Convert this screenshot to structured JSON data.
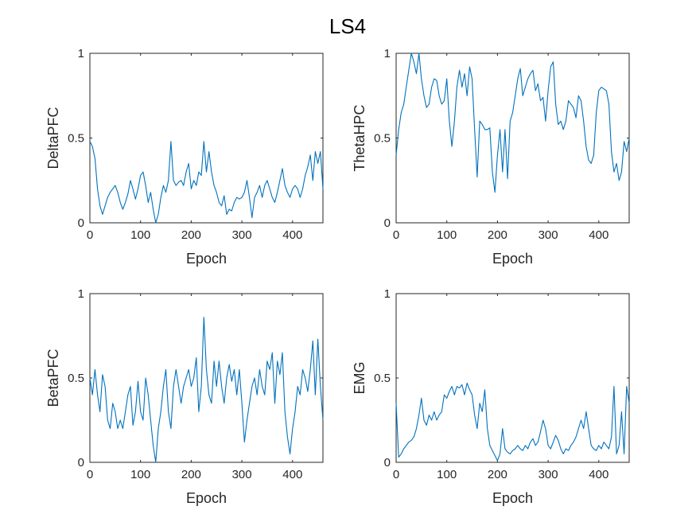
{
  "figure": {
    "title": "LS4"
  },
  "colors": {
    "line": "#0072BD",
    "axes": "#262626",
    "background": "#ffffff"
  },
  "chart_data": [
    {
      "type": "line",
      "title": "",
      "xlabel": "Epoch",
      "ylabel": "DeltaPFC",
      "xlim": [
        0,
        460
      ],
      "ylim": [
        0,
        1
      ],
      "xticks": [
        0,
        100,
        200,
        300,
        400
      ],
      "yticks": [
        0,
        0.5,
        1
      ],
      "grid": false,
      "series": [
        {
          "x": [
            0,
            5,
            10,
            15,
            20,
            25,
            30,
            35,
            40,
            45,
            50,
            55,
            60,
            65,
            70,
            75,
            80,
            85,
            90,
            95,
            100,
            105,
            110,
            115,
            120,
            125,
            130,
            135,
            140,
            145,
            150,
            155,
            160,
            165,
            170,
            175,
            180,
            185,
            190,
            195,
            200,
            205,
            210,
            215,
            220,
            225,
            230,
            235,
            240,
            245,
            250,
            255,
            260,
            265,
            270,
            275,
            280,
            285,
            290,
            295,
            300,
            305,
            310,
            315,
            320,
            325,
            330,
            335,
            340,
            345,
            350,
            355,
            360,
            365,
            370,
            375,
            380,
            385,
            390,
            395,
            400,
            405,
            410,
            415,
            420,
            425,
            430,
            435,
            440,
            445,
            450,
            455,
            460
          ],
          "y": [
            0.48,
            0.45,
            0.38,
            0.2,
            0.1,
            0.05,
            0.1,
            0.15,
            0.18,
            0.2,
            0.22,
            0.18,
            0.12,
            0.08,
            0.12,
            0.17,
            0.25,
            0.2,
            0.14,
            0.2,
            0.28,
            0.3,
            0.22,
            0.12,
            0.18,
            0.08,
            0.0,
            0.05,
            0.15,
            0.22,
            0.18,
            0.25,
            0.48,
            0.25,
            0.22,
            0.24,
            0.25,
            0.22,
            0.3,
            0.35,
            0.2,
            0.25,
            0.22,
            0.3,
            0.28,
            0.48,
            0.3,
            0.42,
            0.3,
            0.22,
            0.18,
            0.12,
            0.1,
            0.16,
            0.05,
            0.08,
            0.07,
            0.12,
            0.15,
            0.14,
            0.15,
            0.18,
            0.25,
            0.15,
            0.03,
            0.15,
            0.18,
            0.22,
            0.15,
            0.22,
            0.25,
            0.2,
            0.15,
            0.12,
            0.18,
            0.25,
            0.32,
            0.22,
            0.18,
            0.15,
            0.2,
            0.22,
            0.2,
            0.15,
            0.2,
            0.28,
            0.33,
            0.4,
            0.25,
            0.42,
            0.35,
            0.42,
            0.2
          ]
        }
      ]
    },
    {
      "type": "line",
      "title": "",
      "xlabel": "Epoch",
      "ylabel": "ThetaHPC",
      "xlim": [
        0,
        460
      ],
      "ylim": [
        0,
        1
      ],
      "xticks": [
        0,
        100,
        200,
        300,
        400
      ],
      "yticks": [
        0,
        0.5,
        1
      ],
      "grid": false,
      "series": [
        {
          "x": [
            0,
            5,
            10,
            15,
            20,
            25,
            30,
            35,
            40,
            45,
            50,
            55,
            60,
            65,
            70,
            75,
            80,
            85,
            90,
            95,
            100,
            105,
            110,
            115,
            120,
            125,
            130,
            135,
            140,
            145,
            150,
            155,
            160,
            165,
            170,
            175,
            180,
            185,
            190,
            195,
            200,
            205,
            210,
            215,
            220,
            225,
            230,
            235,
            240,
            245,
            250,
            255,
            260,
            265,
            270,
            275,
            280,
            285,
            290,
            295,
            300,
            305,
            310,
            315,
            320,
            325,
            330,
            335,
            340,
            345,
            350,
            355,
            360,
            365,
            370,
            375,
            380,
            385,
            390,
            395,
            400,
            405,
            410,
            415,
            420,
            425,
            430,
            435,
            440,
            445,
            450,
            455,
            460
          ],
          "y": [
            0.4,
            0.55,
            0.65,
            0.7,
            0.8,
            0.9,
            1.0,
            0.95,
            0.88,
            1.0,
            0.85,
            0.75,
            0.68,
            0.7,
            0.8,
            0.85,
            0.84,
            0.75,
            0.7,
            0.72,
            0.85,
            0.6,
            0.45,
            0.6,
            0.8,
            0.9,
            0.8,
            0.88,
            0.75,
            0.92,
            0.85,
            0.55,
            0.27,
            0.6,
            0.58,
            0.55,
            0.55,
            0.56,
            0.3,
            0.18,
            0.4,
            0.55,
            0.3,
            0.55,
            0.26,
            0.6,
            0.65,
            0.75,
            0.85,
            0.91,
            0.75,
            0.8,
            0.85,
            0.88,
            0.9,
            0.78,
            0.82,
            0.72,
            0.74,
            0.6,
            0.78,
            0.92,
            0.95,
            0.7,
            0.58,
            0.6,
            0.55,
            0.6,
            0.72,
            0.7,
            0.68,
            0.62,
            0.75,
            0.72,
            0.6,
            0.45,
            0.37,
            0.35,
            0.4,
            0.65,
            0.78,
            0.8,
            0.79,
            0.78,
            0.7,
            0.42,
            0.3,
            0.35,
            0.25,
            0.3,
            0.48,
            0.42,
            0.5
          ]
        }
      ]
    },
    {
      "type": "line",
      "title": "",
      "xlabel": "Epoch",
      "ylabel": "BetaPFC",
      "xlim": [
        0,
        460
      ],
      "ylim": [
        0,
        1
      ],
      "xticks": [
        0,
        100,
        200,
        300,
        400
      ],
      "yticks": [
        0,
        0.5,
        1
      ],
      "grid": false,
      "series": [
        {
          "x": [
            0,
            5,
            10,
            15,
            20,
            25,
            30,
            35,
            40,
            45,
            50,
            55,
            60,
            65,
            70,
            75,
            80,
            85,
            90,
            95,
            100,
            105,
            110,
            115,
            120,
            125,
            130,
            135,
            140,
            145,
            150,
            155,
            160,
            165,
            170,
            175,
            180,
            185,
            190,
            195,
            200,
            205,
            210,
            215,
            220,
            225,
            230,
            235,
            240,
            245,
            250,
            255,
            260,
            265,
            270,
            275,
            280,
            285,
            290,
            295,
            300,
            305,
            310,
            315,
            320,
            325,
            330,
            335,
            340,
            345,
            350,
            355,
            360,
            365,
            370,
            375,
            380,
            385,
            390,
            395,
            400,
            405,
            410,
            415,
            420,
            425,
            430,
            435,
            440,
            445,
            450,
            455,
            460
          ],
          "y": [
            0.5,
            0.4,
            0.55,
            0.4,
            0.3,
            0.52,
            0.45,
            0.25,
            0.2,
            0.35,
            0.3,
            0.2,
            0.25,
            0.2,
            0.3,
            0.4,
            0.45,
            0.22,
            0.3,
            0.48,
            0.3,
            0.25,
            0.5,
            0.4,
            0.25,
            0.1,
            0.0,
            0.2,
            0.3,
            0.45,
            0.55,
            0.3,
            0.2,
            0.45,
            0.55,
            0.45,
            0.35,
            0.45,
            0.5,
            0.55,
            0.45,
            0.5,
            0.62,
            0.3,
            0.45,
            0.86,
            0.55,
            0.4,
            0.35,
            0.6,
            0.45,
            0.6,
            0.45,
            0.35,
            0.5,
            0.58,
            0.48,
            0.55,
            0.4,
            0.55,
            0.35,
            0.12,
            0.25,
            0.35,
            0.45,
            0.5,
            0.4,
            0.55,
            0.45,
            0.4,
            0.6,
            0.55,
            0.65,
            0.35,
            0.6,
            0.52,
            0.65,
            0.3,
            0.15,
            0.05,
            0.2,
            0.3,
            0.45,
            0.4,
            0.55,
            0.5,
            0.42,
            0.55,
            0.72,
            0.4,
            0.73,
            0.45,
            0.25
          ]
        }
      ]
    },
    {
      "type": "line",
      "title": "",
      "xlabel": "Epoch",
      "ylabel": "EMG",
      "xlim": [
        0,
        460
      ],
      "ylim": [
        0,
        1
      ],
      "xticks": [
        0,
        100,
        200,
        300,
        400
      ],
      "yticks": [
        0,
        0.5,
        1
      ],
      "grid": false,
      "series": [
        {
          "x": [
            0,
            5,
            10,
            15,
            20,
            25,
            30,
            35,
            40,
            45,
            50,
            55,
            60,
            65,
            70,
            75,
            80,
            85,
            90,
            95,
            100,
            105,
            110,
            115,
            120,
            125,
            130,
            135,
            140,
            145,
            150,
            155,
            160,
            165,
            170,
            175,
            180,
            185,
            190,
            195,
            200,
            205,
            210,
            215,
            220,
            225,
            230,
            235,
            240,
            245,
            250,
            255,
            260,
            265,
            270,
            275,
            280,
            285,
            290,
            295,
            300,
            305,
            310,
            315,
            320,
            325,
            330,
            335,
            340,
            345,
            350,
            355,
            360,
            365,
            370,
            375,
            380,
            385,
            390,
            395,
            400,
            405,
            410,
            415,
            420,
            425,
            430,
            435,
            440,
            445,
            450,
            455,
            460
          ],
          "y": [
            0.35,
            0.03,
            0.05,
            0.08,
            0.1,
            0.12,
            0.13,
            0.15,
            0.2,
            0.28,
            0.38,
            0.25,
            0.22,
            0.28,
            0.25,
            0.3,
            0.25,
            0.28,
            0.3,
            0.4,
            0.38,
            0.42,
            0.45,
            0.4,
            0.45,
            0.44,
            0.46,
            0.4,
            0.47,
            0.43,
            0.4,
            0.28,
            0.2,
            0.35,
            0.3,
            0.43,
            0.2,
            0.1,
            0.07,
            0.04,
            0.01,
            0.05,
            0.2,
            0.08,
            0.06,
            0.05,
            0.07,
            0.08,
            0.1,
            0.08,
            0.07,
            0.1,
            0.08,
            0.12,
            0.14,
            0.1,
            0.12,
            0.18,
            0.25,
            0.2,
            0.1,
            0.08,
            0.12,
            0.16,
            0.13,
            0.08,
            0.05,
            0.08,
            0.07,
            0.1,
            0.12,
            0.15,
            0.2,
            0.25,
            0.2,
            0.3,
            0.2,
            0.1,
            0.08,
            0.07,
            0.1,
            0.08,
            0.12,
            0.1,
            0.08,
            0.15,
            0.45,
            0.05,
            0.1,
            0.3,
            0.05,
            0.45,
            0.35
          ]
        }
      ]
    }
  ]
}
